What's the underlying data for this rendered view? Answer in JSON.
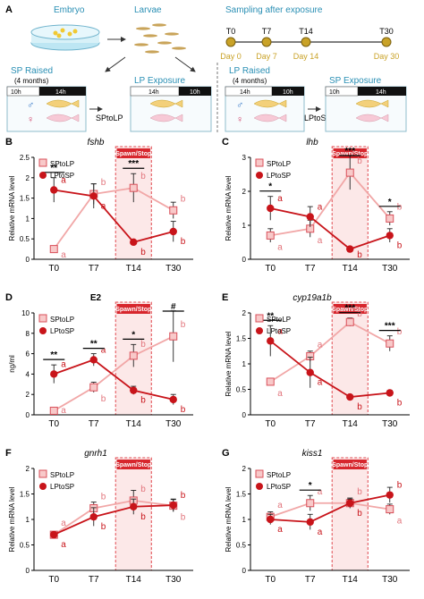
{
  "schematic": {
    "panel_letter": "A",
    "embryo": "Embryo",
    "larvae": "Larvae",
    "sampling_title": "Sampling after exposure",
    "timeline": [
      {
        "label": "T0",
        "day": "Day 0"
      },
      {
        "label": "T7",
        "day": "Day 7"
      },
      {
        "label": "T14",
        "day": "Day 14"
      },
      {
        "label": "T30",
        "day": "Day 30"
      }
    ],
    "sp_raised": "SP Raised",
    "sp_raised_sub": "(4 months)",
    "lp_exposure": "LP Exposure",
    "lp_raised": "LP Raised",
    "lp_raised_sub": "(4 months)",
    "sp_exposure": "SP Exposure",
    "sptolp": "SPtoLP",
    "lptosp": "LPtoSP",
    "light_10h": "10h",
    "dark_14h": "14h",
    "light_14h": "14h",
    "dark_10h": "10h",
    "male": "♂",
    "female": "♀",
    "colors": {
      "teal": "#2a8fb4",
      "light": "#f1a7a7",
      "dark": "#c8141a",
      "gold": "#c9a227"
    }
  },
  "common": {
    "ylabel": "Relative mRNA level",
    "ylabel_ng": "ng/ml",
    "spawn_stop": "Spawn/Stop",
    "legend_light": "SPtoLP",
    "legend_dark": "LPtoSP"
  },
  "chart_data": [
    {
      "letter": "B",
      "title": "fshb",
      "italic": true,
      "type": "line",
      "x": [
        "T0",
        "T7",
        "T14",
        "T30"
      ],
      "ylim": [
        0,
        2.5
      ],
      "yticks": [
        "0",
        "0.5",
        "1",
        "1.5",
        "2",
        "2.5"
      ],
      "series": [
        {
          "name": "SPtoLP",
          "values": [
            0.25,
            1.6,
            1.75,
            1.2
          ],
          "err": [
            0.05,
            0.25,
            0.35,
            0.2
          ]
        },
        {
          "name": "LPtoSP",
          "values": [
            1.7,
            1.55,
            0.42,
            0.68
          ],
          "err": [
            0.3,
            0.3,
            0.05,
            0.25
          ]
        }
      ],
      "light_letters": [
        "a",
        "b",
        "b",
        "b"
      ],
      "dark_letters": [
        "a",
        "a",
        "b",
        "b"
      ],
      "sig": [
        "**",
        "",
        "***",
        ""
      ]
    },
    {
      "letter": "C",
      "title": "lhb",
      "italic": true,
      "type": "line",
      "x": [
        "T0",
        "T7",
        "T14",
        "T30"
      ],
      "ylim": [
        0,
        3
      ],
      "yticks": [
        "0",
        "1",
        "2",
        "3"
      ],
      "series": [
        {
          "name": "SPtoLP",
          "values": [
            0.7,
            0.9,
            2.55,
            1.2
          ],
          "err": [
            0.2,
            0.25,
            0.5,
            0.2
          ]
        },
        {
          "name": "LPtoSP",
          "values": [
            1.5,
            1.25,
            0.3,
            0.7
          ],
          "err": [
            0.35,
            0.3,
            0.04,
            0.2
          ]
        }
      ],
      "light_letters": [
        "a",
        "a",
        "b",
        "b"
      ],
      "dark_letters": [
        "a",
        "a",
        "b",
        "b"
      ],
      "sig": [
        "*",
        "",
        "***",
        "*"
      ]
    },
    {
      "letter": "D",
      "title": "E2",
      "italic": false,
      "type": "line",
      "x": [
        "T0",
        "T7",
        "T14",
        "T30"
      ],
      "ylim": [
        0,
        10
      ],
      "yticks": [
        "0",
        "2",
        "4",
        "6",
        "8",
        "10"
      ],
      "series": [
        {
          "name": "SPtoLP",
          "values": [
            0.4,
            2.7,
            5.8,
            7.7
          ],
          "err": [
            0.3,
            0.5,
            1.1,
            2.5
          ]
        },
        {
          "name": "LPtoSP",
          "values": [
            4.0,
            5.4,
            2.4,
            1.5
          ],
          "err": [
            0.9,
            0.6,
            0.4,
            0.5
          ]
        }
      ],
      "light_letters": [
        "a",
        "b",
        "b",
        "b"
      ],
      "dark_letters": [
        "a",
        "a",
        "b",
        "b"
      ],
      "sig": [
        "**",
        "**",
        "*",
        "#"
      ]
    },
    {
      "letter": "E",
      "title": "cyp19a1b",
      "italic": true,
      "type": "line",
      "x": [
        "T0",
        "T7",
        "T14",
        "T30"
      ],
      "ylim": [
        0,
        2
      ],
      "yticks": [
        "0",
        "0.5",
        "1",
        "1.5",
        "2"
      ],
      "series": [
        {
          "name": "SPtoLP",
          "values": [
            0.65,
            1.15,
            1.82,
            1.4
          ],
          "err": [
            0.05,
            0.1,
            0.08,
            0.15
          ]
        },
        {
          "name": "LPtoSP",
          "values": [
            1.45,
            0.83,
            0.35,
            0.43
          ],
          "err": [
            0.3,
            0.3,
            0.04,
            0.05
          ]
        }
      ],
      "light_letters": [
        "a",
        "a",
        "b",
        "b"
      ],
      "dark_letters": [
        "a",
        "a",
        "b",
        "b"
      ],
      "sig": [
        "**",
        "",
        "***",
        "***"
      ]
    },
    {
      "letter": "F",
      "title": "gnrh1",
      "italic": true,
      "type": "line",
      "x": [
        "T0",
        "T7",
        "T14",
        "T30"
      ],
      "ylim": [
        0,
        2
      ],
      "yticks": [
        "0",
        "0.5",
        "1",
        "1.5",
        "2"
      ],
      "series": [
        {
          "name": "SPtoLP",
          "values": [
            0.7,
            1.22,
            1.37,
            1.27
          ],
          "err": [
            0.05,
            0.12,
            0.2,
            0.12
          ]
        },
        {
          "name": "LPtoSP",
          "values": [
            0.7,
            1.05,
            1.25,
            1.28
          ],
          "err": [
            0.05,
            0.18,
            0.15,
            0.12
          ]
        }
      ],
      "light_letters": [
        "a",
        "b",
        "b",
        "b"
      ],
      "dark_letters": [
        "a",
        "b",
        "b",
        "b"
      ],
      "sig": [
        "",
        "",
        "",
        ""
      ]
    },
    {
      "letter": "G",
      "title": "kiss1",
      "italic": true,
      "type": "line",
      "x": [
        "T0",
        "T7",
        "T14",
        "T30"
      ],
      "ylim": [
        0,
        2
      ],
      "yticks": [
        "0",
        "0.5",
        "1",
        "1.5",
        "2"
      ],
      "series": [
        {
          "name": "SPtoLP",
          "values": [
            1.05,
            1.32,
            1.32,
            1.2
          ],
          "err": [
            0.1,
            0.15,
            0.1,
            0.1
          ]
        },
        {
          "name": "LPtoSP",
          "values": [
            1.0,
            0.95,
            1.32,
            1.48
          ],
          "err": [
            0.1,
            0.15,
            0.08,
            0.15
          ]
        }
      ],
      "light_letters": [
        "a",
        "a",
        "b",
        "a"
      ],
      "dark_letters": [
        "a",
        "a",
        "b",
        "b"
      ],
      "sig": [
        "",
        "*",
        "",
        ""
      ]
    }
  ]
}
